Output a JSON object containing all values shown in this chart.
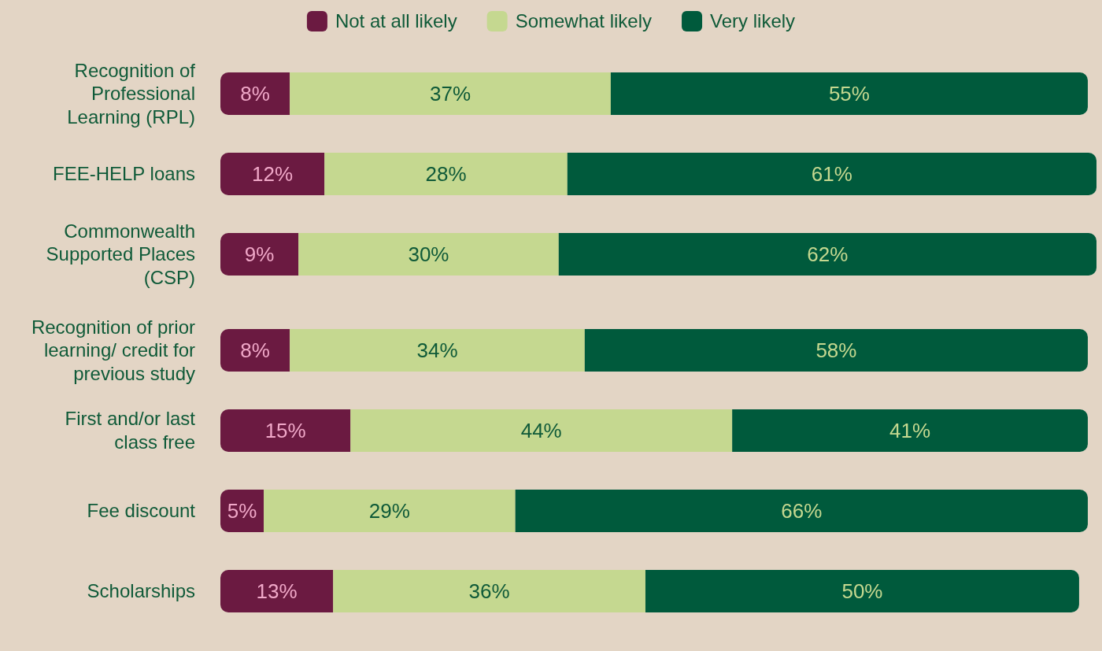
{
  "chart_data": {
    "type": "bar",
    "orientation": "horizontal",
    "stacked": true,
    "legend": "top",
    "tick_labels": "y",
    "categories": [
      "Recognition of Professional Learning (RPL)",
      "FEE-HELP loans",
      "Commonwealth Supported Places (CSP)",
      "Recognition of prior learning/ credit for previous study",
      "First and/or last class free",
      "Fee discount",
      "Scholarships"
    ],
    "series": [
      {
        "name": "Not at all likely",
        "color": "#6b1a41",
        "values": [
          8,
          12,
          9,
          8,
          15,
          5,
          13
        ],
        "value_labels": [
          "8%",
          "12%",
          "9%",
          "8%",
          "15%",
          "5%",
          "13%"
        ]
      },
      {
        "name": "Somewhat likely",
        "color": "#c5d890",
        "values": [
          37,
          28,
          30,
          34,
          44,
          29,
          36
        ],
        "value_labels": [
          "37%",
          "28%",
          "30%",
          "34%",
          "44%",
          "29%",
          "36%"
        ]
      },
      {
        "name": "Very likely",
        "color": "#005a3c",
        "values": [
          55,
          61,
          62,
          58,
          41,
          66,
          50
        ],
        "value_labels": [
          "55%",
          "61%",
          "62%",
          "58%",
          "41%",
          "66%",
          "50%"
        ]
      }
    ]
  }
}
